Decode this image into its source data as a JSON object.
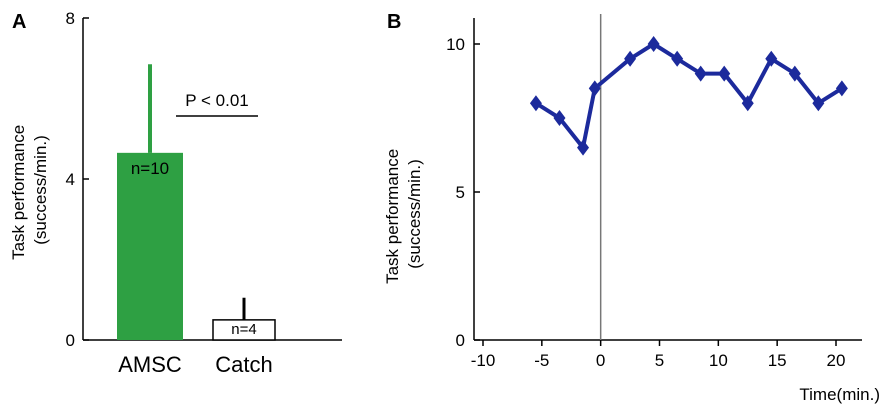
{
  "chart_data": [
    {
      "panel": "A",
      "type": "bar",
      "categories": [
        "AMSC",
        "Catch"
      ],
      "values": [
        4.65,
        0.5
      ],
      "error_upper": [
        6.85,
        1.05
      ],
      "bar_labels": [
        "n=10",
        "n=4"
      ],
      "bar_colors": [
        "#2ea043",
        "#ffffff"
      ],
      "ylabel": "Task performance\n(success/min.)",
      "ylabel_lines": [
        "Task performance",
        "(success/min.)"
      ],
      "ylim": [
        0,
        8
      ],
      "yticks": [
        "0",
        "4",
        "8"
      ],
      "annotation": "P < 0.01"
    },
    {
      "panel": "B",
      "type": "line",
      "x": [
        -5.5,
        -3.5,
        -1.5,
        -0.5,
        2.5,
        4.5,
        6.5,
        8.5,
        10.5,
        12.5,
        14.5,
        16.5,
        18.5,
        20.5
      ],
      "series": [
        {
          "values": [
            8.0,
            7.5,
            6.5,
            8.5,
            9.5,
            10.0,
            9.5,
            9.0,
            9.0,
            8.0,
            9.5,
            9.0,
            8.0,
            8.5
          ],
          "color": "#1c2a9c"
        }
      ],
      "xlabel": "Time(min.)",
      "ylabel": "Task performance\n(success/min.)",
      "ylabel_lines": [
        "Task performance",
        "(success/min.)"
      ],
      "xlim": [
        -10,
        21
      ],
      "ylim": [
        0,
        10.5
      ],
      "xticks": [
        "-10",
        "-5",
        "0",
        "5",
        "10",
        "15",
        "20"
      ],
      "yticks": [
        "0",
        "5",
        "10"
      ],
      "vline_x": 0
    }
  ]
}
